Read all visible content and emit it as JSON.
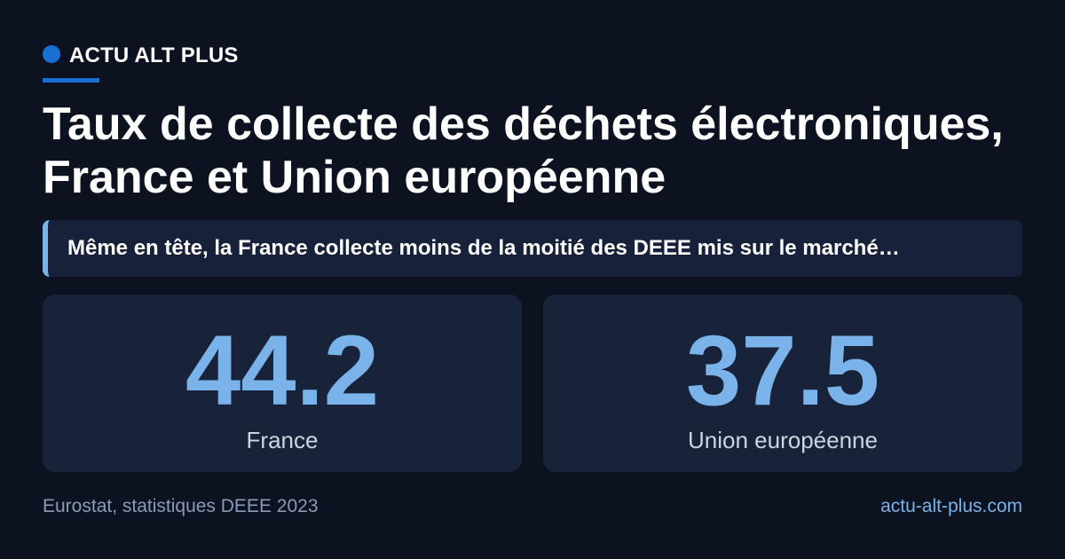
{
  "brand": "ACTU ALT PLUS",
  "title": "Taux de collecte des déchets électroniques, France et Union européenne",
  "subtitle": "Même en tête, la France collecte moins de la moitié des DEEE mis sur le marché…",
  "stats": [
    {
      "value": 44.2,
      "label": "France"
    },
    {
      "value": 37.5,
      "label": "Union européenne"
    }
  ],
  "footer": {
    "source": "Eurostat, statistiques DEEE 2023",
    "site": "actu-alt-plus.com"
  }
}
